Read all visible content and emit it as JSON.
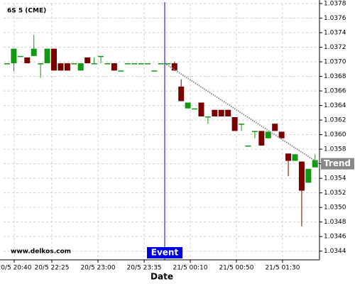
{
  "chart_data": {
    "type": "candlestick",
    "title": "6S 5 (CME)",
    "x_label": "Date",
    "watermark": "www.delkos.com",
    "x": [
      0,
      1,
      2,
      3,
      4,
      5,
      6,
      7,
      8,
      9,
      10,
      11,
      12,
      13,
      14,
      15,
      16,
      17,
      18,
      19,
      20,
      21,
      22,
      23,
      24,
      25,
      26,
      27,
      28,
      29,
      30,
      31,
      32,
      33,
      34,
      35,
      36,
      37,
      38,
      39,
      40,
      41,
      42,
      43,
      44,
      45,
      46
    ],
    "open": [
      1.03698,
      1.03698,
      1.03708,
      1.03706,
      1.03708,
      1.03698,
      1.03698,
      1.03718,
      1.03698,
      1.03698,
      1.03698,
      1.03688,
      1.03706,
      1.03698,
      1.03708,
      1.03698,
      1.03698,
      1.03688,
      1.03698,
      1.03698,
      1.03698,
      1.03698,
      1.03688,
      1.03698,
      1.03698,
      1.03698,
      1.03666,
      1.03636,
      1.03636,
      1.03644,
      1.03625,
      1.03634,
      1.03634,
      1.03634,
      1.03624,
      1.03615,
      1.03585,
      1.03605,
      1.03605,
      1.03595,
      1.03615,
      1.03604,
      1.03574,
      1.03564,
      1.03563,
      1.03534,
      1.03555
    ],
    "high": [
      1.03698,
      1.03718,
      1.03708,
      1.03706,
      1.03737,
      1.03698,
      1.03718,
      1.03718,
      1.03698,
      1.03698,
      1.03698,
      1.03698,
      1.03706,
      1.03706,
      1.03708,
      1.03698,
      1.03698,
      1.03688,
      1.03698,
      1.03698,
      1.03698,
      1.03698,
      1.03688,
      1.03698,
      1.03698,
      1.037,
      1.03676,
      1.03644,
      1.03636,
      1.03644,
      1.03625,
      1.03634,
      1.03634,
      1.03634,
      1.03624,
      1.03615,
      1.03585,
      1.03605,
      1.03605,
      1.03604,
      1.03615,
      1.03604,
      1.03574,
      1.03573,
      1.03563,
      1.03553,
      1.03573
    ],
    "low": [
      1.03698,
      1.03687,
      1.03708,
      1.03698,
      1.03708,
      1.03678,
      1.03698,
      1.03688,
      1.03688,
      1.03688,
      1.03698,
      1.03688,
      1.03698,
      1.03698,
      1.03698,
      1.03698,
      1.03688,
      1.03688,
      1.03698,
      1.03698,
      1.03698,
      1.03698,
      1.03688,
      1.03698,
      1.03698,
      1.03688,
      1.03646,
      1.03636,
      1.03636,
      1.03625,
      1.03615,
      1.03625,
      1.03625,
      1.03625,
      1.03605,
      1.03605,
      1.03585,
      1.03595,
      1.03585,
      1.03595,
      1.03605,
      1.03595,
      1.03543,
      1.03564,
      1.03474,
      1.03534,
      1.03555
    ],
    "close": [
      1.03698,
      1.03718,
      1.03708,
      1.03698,
      1.03718,
      1.03698,
      1.03718,
      1.03688,
      1.03688,
      1.03688,
      1.03698,
      1.03698,
      1.03698,
      1.03698,
      1.03708,
      1.03698,
      1.03688,
      1.03688,
      1.03698,
      1.03698,
      1.03698,
      1.03698,
      1.03688,
      1.03698,
      1.03698,
      1.03688,
      1.03646,
      1.03644,
      1.03636,
      1.03625,
      1.03625,
      1.03625,
      1.03625,
      1.03625,
      1.03605,
      1.03615,
      1.03585,
      1.03605,
      1.03585,
      1.03604,
      1.03605,
      1.03595,
      1.03564,
      1.03573,
      1.03523,
      1.03553,
      1.03565
    ],
    "up_color": "#119911",
    "down_color": "#7a0000",
    "xlim": [
      -0.53,
      46.66
    ],
    "ylim": [
      1.03428,
      1.0378
    ],
    "xticks": [
      {
        "value": 1.06,
        "label": "20/5 20:40"
      },
      {
        "value": 6.68,
        "label": "20/5 22:25"
      },
      {
        "value": 13.57,
        "label": "20/5 23:00"
      },
      {
        "value": 20.47,
        "label": "20/5 23:35"
      },
      {
        "value": 27.36,
        "label": "21/5 00:10"
      },
      {
        "value": 34.25,
        "label": "21/5 00:50"
      },
      {
        "value": 41.14,
        "label": "21/5 01:30"
      }
    ],
    "yticks": [
      1.0344,
      1.0346,
      1.0348,
      {
        "value": 1.035,
        "label": "1.0350"
      },
      1.0352,
      1.0354,
      1.0356,
      1.0358,
      {
        "value": 1.036,
        "label": "1.0360"
      },
      1.0362,
      1.0364,
      1.0366,
      1.0368,
      {
        "value": 1.037,
        "label": "1.0370"
      },
      1.0372,
      1.0374,
      1.0376,
      1.0378
    ],
    "grid": true,
    "event": {
      "label": "Event",
      "x": 23.54,
      "color": "#0000dd"
    },
    "trend": {
      "label": "Trend",
      "x": [
        23.54,
        46.66
      ],
      "y": [
        1.03698,
        1.0356
      ],
      "color": "#888888"
    }
  }
}
